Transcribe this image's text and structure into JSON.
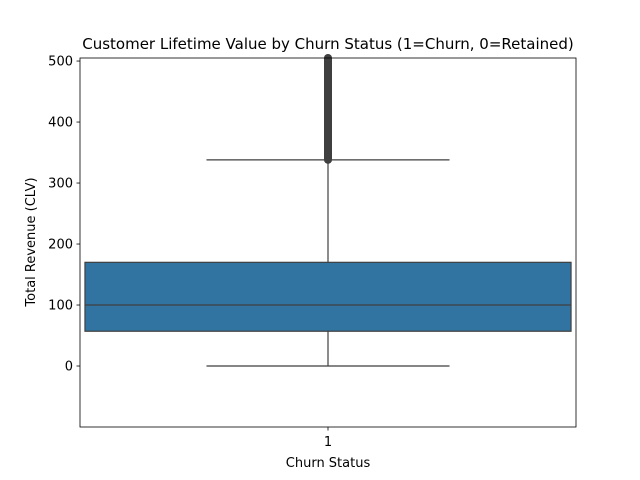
{
  "chart_data": {
    "type": "box",
    "title": "Customer Lifetime Value by Churn Status (1=Churn, 0=Retained)",
    "xlabel": "Churn Status",
    "ylabel": "Total Revenue (CLV)",
    "categories": [
      "1"
    ],
    "ylim": [
      -100,
      505
    ],
    "yticks": [
      0,
      100,
      200,
      300,
      400,
      500
    ],
    "grid": false,
    "boxes": [
      {
        "category": "1",
        "whisker_low": 0,
        "q1": 57,
        "median": 100,
        "q3": 170,
        "whisker_high": 338,
        "outlier_range": [
          338,
          505
        ]
      }
    ],
    "colors": {
      "box_fill": "#3274a1",
      "line": "#3f3f3f",
      "outlier": "#3f3f3f"
    }
  }
}
